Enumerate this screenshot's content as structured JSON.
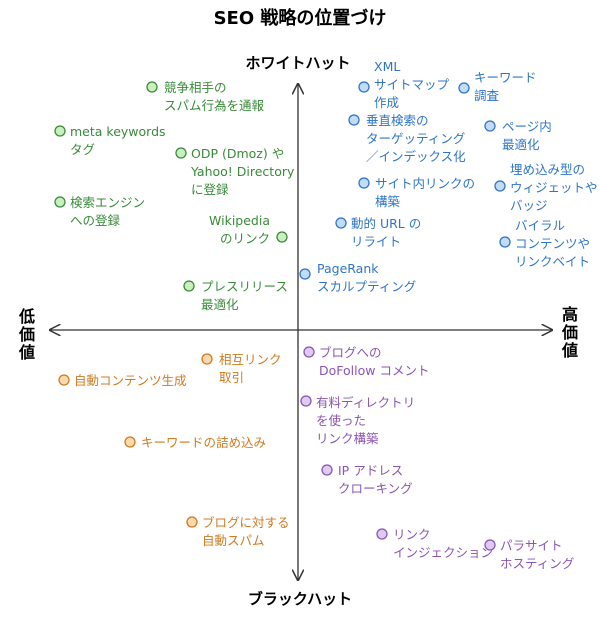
{
  "title": "SEO 戦略の位置づけ",
  "axes": {
    "top": "ホワイトハット",
    "bottom": "ブラックハット",
    "left": "低価値",
    "right": "高価値"
  },
  "colors": {
    "green": "#3a8a3a",
    "green_fill": "#c9efbf",
    "blue": "#2f75c6",
    "blue_fill": "#c3dcf6",
    "orange": "#d07a20",
    "orange_fill": "#fbd9ae",
    "purple": "#8a55b5",
    "purple_fill": "#dfcaf0",
    "axis": "#333333"
  },
  "items": [
    {
      "id": "competitor-spam-report",
      "color": "green",
      "lines": [
        "競争相手の",
        "スパム行為を通報"
      ]
    },
    {
      "id": "meta-keywords-tag",
      "color": "green",
      "lines": [
        "meta keywords",
        "タグ"
      ]
    },
    {
      "id": "odp-yahoo-directory",
      "color": "green",
      "lines": [
        "ODP (Dmoz) や",
        "Yahoo! Directory",
        "に登録"
      ]
    },
    {
      "id": "search-engine-registration",
      "color": "green",
      "lines": [
        "検索エンジン",
        "への登録"
      ]
    },
    {
      "id": "wikipedia-link",
      "color": "green",
      "lines": [
        "Wikipedia",
        "のリンク"
      ]
    },
    {
      "id": "press-release-optimization",
      "color": "green",
      "lines": [
        "プレスリリース",
        "最適化"
      ]
    },
    {
      "id": "xml-sitemap",
      "color": "blue",
      "lines": [
        "XML",
        "サイトマップ",
        "作成"
      ]
    },
    {
      "id": "keyword-research",
      "color": "blue",
      "lines": [
        "キーワード",
        "調査"
      ]
    },
    {
      "id": "vertical-search-targeting",
      "color": "blue",
      "lines": [
        "垂直検索の",
        "ターゲッティング",
        "／インデックス化"
      ]
    },
    {
      "id": "page-optimization",
      "color": "blue",
      "lines": [
        "ページ内",
        "最適化"
      ]
    },
    {
      "id": "internal-link-structure",
      "color": "blue",
      "lines": [
        "サイト内リンクの",
        "構築"
      ]
    },
    {
      "id": "embedded-widgets-badges",
      "color": "blue",
      "lines": [
        "埋め込み型の",
        "ウィジェットや",
        "バッジ"
      ]
    },
    {
      "id": "dynamic-url-rewrite",
      "color": "blue",
      "lines": [
        "動的 URL の",
        "リライト"
      ]
    },
    {
      "id": "viral-content-linkbait",
      "color": "blue",
      "lines": [
        "バイラル",
        "コンテンツや",
        "リンクベイト"
      ]
    },
    {
      "id": "pagerank-sculpting",
      "color": "blue",
      "lines": [
        "PageRank",
        "スカルプティング"
      ]
    },
    {
      "id": "reciprocal-link-exchange",
      "color": "orange",
      "lines": [
        "相互リンク",
        "取引"
      ]
    },
    {
      "id": "auto-content-generation",
      "color": "orange",
      "lines": [
        "自動コンテンツ生成"
      ]
    },
    {
      "id": "keyword-stuffing",
      "color": "orange",
      "lines": [
        "キーワードの詰め込み"
      ]
    },
    {
      "id": "auto-blog-spam",
      "color": "orange",
      "lines": [
        "ブログに対する",
        "自動スパム"
      ]
    },
    {
      "id": "dofollow-blog-comments",
      "color": "purple",
      "lines": [
        "ブログへの",
        "DoFollow コメント"
      ]
    },
    {
      "id": "paid-directory-links",
      "color": "purple",
      "lines": [
        "有料ディレクトリ",
        "を使った",
        "リンク構築"
      ]
    },
    {
      "id": "ip-address-cloaking",
      "color": "purple",
      "lines": [
        "IP アドレス",
        "クローキング"
      ]
    },
    {
      "id": "link-injection",
      "color": "purple",
      "lines": [
        "リンク",
        "インジェクション"
      ]
    },
    {
      "id": "parasite-hosting",
      "color": "purple",
      "lines": [
        "パラサイト",
        "ホスティング"
      ]
    }
  ]
}
